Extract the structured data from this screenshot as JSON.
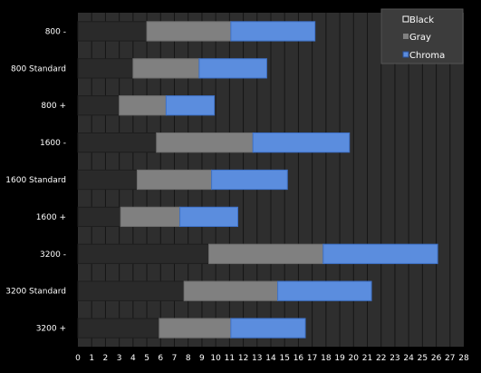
{
  "chart_data": {
    "type": "bar",
    "orientation": "horizontal",
    "stacked": true,
    "categories": [
      "800 -",
      "800 Standard",
      "800 +",
      "1600 -",
      "1600 Standard",
      "1600 +",
      "3200 -",
      "3200 Standard",
      "3200 +"
    ],
    "series": [
      {
        "name": "Black",
        "values": [
          5.0,
          4.0,
          3.0,
          5.7,
          4.3,
          3.1,
          9.5,
          7.7,
          5.9
        ]
      },
      {
        "name": "Gray",
        "values": [
          6.1,
          4.8,
          3.4,
          7.0,
          5.4,
          4.3,
          8.3,
          6.8,
          5.2
        ]
      },
      {
        "name": "Chroma",
        "values": [
          6.1,
          4.9,
          3.5,
          7.0,
          5.5,
          4.2,
          8.3,
          6.8,
          5.4
        ]
      }
    ],
    "xlim": [
      0,
      28
    ],
    "x_ticks": [
      "0",
      "1",
      "2",
      "3",
      "4",
      "5",
      "6",
      "7",
      "8",
      "9",
      "10",
      "11",
      "12",
      "13",
      "14",
      "15",
      "16",
      "17",
      "18",
      "19",
      "20",
      "21",
      "22",
      "23",
      "24",
      "25",
      "26",
      "27",
      "28"
    ],
    "grid": "vertical lines at each integer",
    "legend_position": "top-right",
    "colors": {
      "background": "#000000",
      "plot_background": "#2e2e2e",
      "grid": "#151515",
      "Black": "#2a2a2a",
      "Gray": "#808080",
      "Chroma": "#5b8dde",
      "legend_background": "#3c3c3c"
    }
  }
}
